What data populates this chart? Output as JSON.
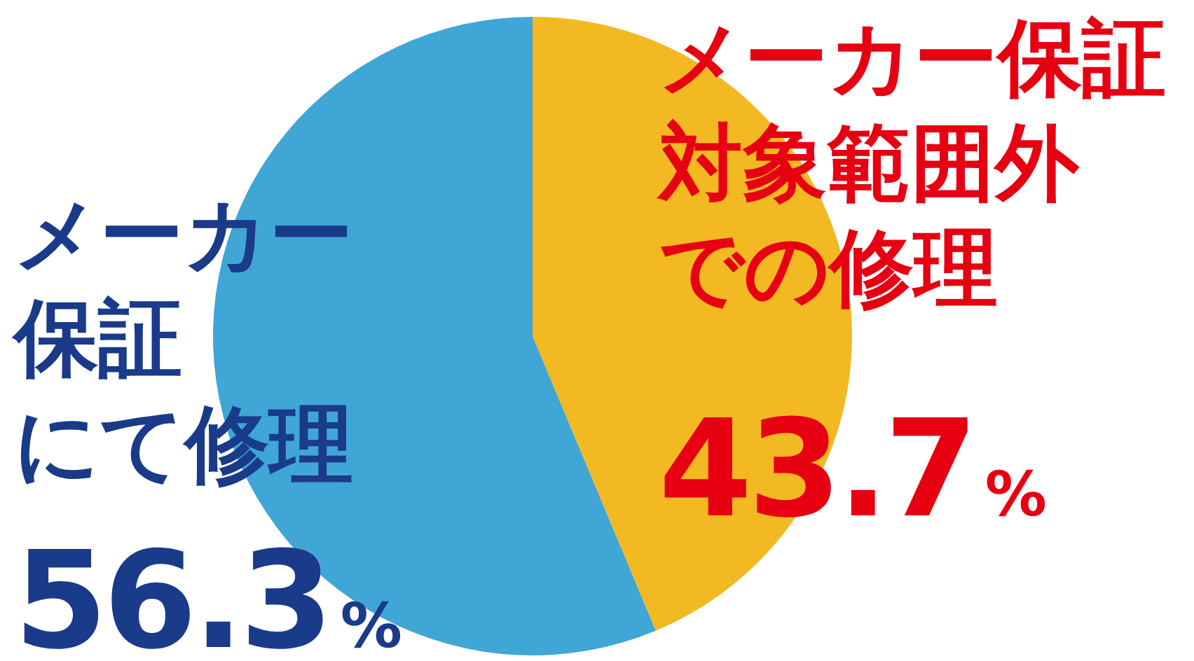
{
  "chart_data": {
    "type": "pie",
    "categories": [
      "メーカー保証対象範囲外での修理",
      "メーカー保証にて修理"
    ],
    "values": [
      43.7,
      56.3
    ],
    "colors": [
      "#f3b922",
      "#3fa6d5"
    ],
    "value_labels": [
      "43.7%",
      "56.3%"
    ]
  }
}
